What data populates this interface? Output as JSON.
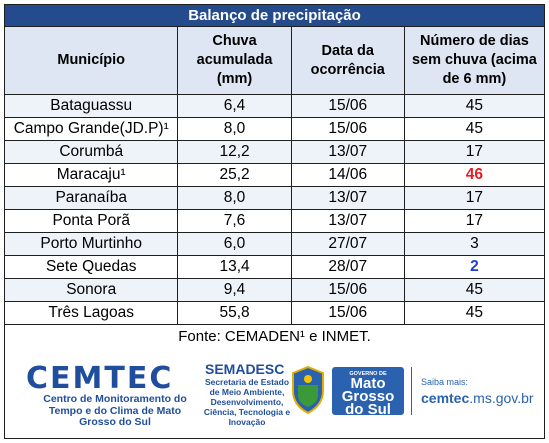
{
  "table": {
    "title": "Balanço de precipitação",
    "headers": [
      "Município",
      "Chuva acumulada (mm)",
      "Data da ocorrência",
      "Número de dias sem chuva (acima de 6 mm)"
    ],
    "rows": [
      {
        "municipio": "Bataguassu",
        "chuva": "6,4",
        "data": "15/06",
        "dias": "45"
      },
      {
        "municipio": "Campo Grande(JD.P)¹",
        "chuva": "8,0",
        "data": "15/06",
        "dias": "45"
      },
      {
        "municipio": "Corumbá",
        "chuva": "12,2",
        "data": "13/07",
        "dias": "17"
      },
      {
        "municipio": "Maracaju¹",
        "chuva": "25,2",
        "data": "14/06",
        "dias": "46"
      },
      {
        "municipio": "Paranaíba",
        "chuva": "8,0",
        "data": "13/07",
        "dias": "17"
      },
      {
        "municipio": "Ponta Porã",
        "chuva": "7,6",
        "data": "13/07",
        "dias": "17"
      },
      {
        "municipio": "Porto Murtinho",
        "chuva": "6,0",
        "data": "27/07",
        "dias": "3"
      },
      {
        "municipio": "Sete Quedas",
        "chuva": "13,4",
        "data": "28/07",
        "dias": "2"
      },
      {
        "municipio": "Sonora",
        "chuva": "9,4",
        "data": "15/06",
        "dias": "45"
      },
      {
        "municipio": "Três Lagoas",
        "chuva": "55,8",
        "data": "15/06",
        "dias": "45"
      }
    ],
    "source": "Fonte: CEMADEN¹ e INMET."
  },
  "highlight_colors": {
    "max": "#e31e24",
    "min": "#1f3fd1",
    "title_bg": "#244b8c"
  },
  "footer": {
    "cemtec": {
      "name": "CEMTEC",
      "subtitle": "Centro de Monitoramento do Tempo e do Clima de Mato Grosso do Sul"
    },
    "semadesc": {
      "name": "SEMADESC",
      "subtitle": "Secretaria de Estado de Meio Ambiente, Desenvolvimento, Ciência, Tecnologia e Inovação"
    },
    "governo": {
      "small": "GOVERNO DE",
      "l1": "Mato",
      "l2": "Grosso",
      "l3": "do Sul"
    },
    "saiba": "Saiba mais:",
    "site_bold": "cemtec",
    "site_rest": ".ms.gov.br"
  }
}
